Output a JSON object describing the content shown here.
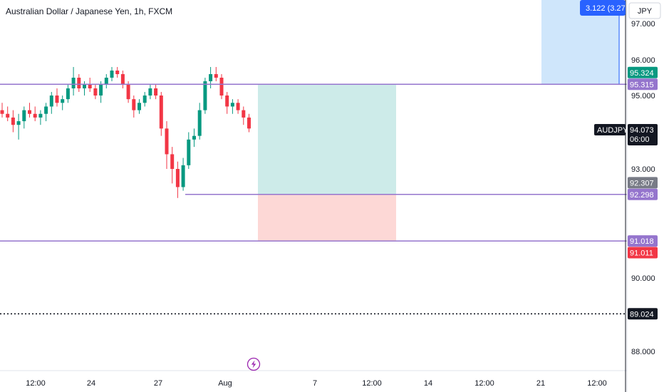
{
  "header": {
    "title": "Australian Dollar / Japanese Yen, 1h, FXCM"
  },
  "axis": {
    "currency": "JPY"
  },
  "colors": {
    "up": "#26a69a",
    "down": "#ef5350",
    "candle_up": "#089981",
    "candle_down": "#f23645",
    "level": "#9575cd",
    "profit_zone": "#cdebe9",
    "loss_zone": "#fdd8d6",
    "measure_zone": "#cfe6fb",
    "measure_badge": "#2962ff",
    "price_badge": "#131722"
  },
  "chart_data": {
    "type": "candlestick",
    "title": "Australian Dollar / Japanese Yen, 1h, FXCM",
    "symbol": "AUDJPY",
    "currency": "JPY",
    "ylim": [
      87.6,
      97.5
    ],
    "y_ticks": [
      "97.000",
      "96.000",
      "95.000",
      "93.000",
      "90.000",
      "88.000"
    ],
    "y_tick_values": [
      97,
      96,
      95,
      93,
      90,
      88
    ],
    "x_tick_labels": [
      "12:00",
      "24",
      "27",
      "Aug",
      "7",
      "12:00",
      "14",
      "12:00",
      "21",
      "12:00"
    ],
    "x_tick_index": [
      0,
      1,
      2,
      3,
      4,
      5,
      6,
      7,
      8,
      9
    ],
    "series": [
      {
        "values": [
          [
            0,
            94.6,
            94.8,
            94.4,
            94.5
          ],
          [
            1,
            94.5,
            94.7,
            94.3,
            94.4
          ],
          [
            2,
            94.4,
            94.6,
            94.0,
            94.2
          ],
          [
            3,
            94.2,
            94.5,
            93.8,
            94.3
          ],
          [
            4,
            94.3,
            94.7,
            94.1,
            94.6
          ],
          [
            5,
            94.6,
            94.8,
            94.4,
            94.5
          ],
          [
            6,
            94.5,
            94.7,
            94.3,
            94.4
          ],
          [
            7,
            94.4,
            94.6,
            94.2,
            94.5
          ],
          [
            8,
            94.5,
            94.8,
            94.3,
            94.7
          ],
          [
            9,
            94.7,
            95.1,
            94.5,
            95.0
          ],
          [
            10,
            95.0,
            95.2,
            94.7,
            94.8
          ],
          [
            11,
            94.8,
            95.0,
            94.6,
            94.9
          ],
          [
            12,
            94.9,
            95.3,
            94.8,
            95.2
          ],
          [
            13,
            95.2,
            95.8,
            95.0,
            95.5
          ],
          [
            14,
            95.5,
            95.6,
            95.1,
            95.2
          ],
          [
            15,
            95.2,
            95.4,
            95.0,
            95.3
          ],
          [
            16,
            95.3,
            95.5,
            95.1,
            95.2
          ],
          [
            17,
            95.2,
            95.3,
            94.9,
            95.0
          ],
          [
            18,
            95.0,
            95.4,
            94.8,
            95.3
          ],
          [
            19,
            95.3,
            95.6,
            95.2,
            95.5
          ],
          [
            20,
            95.5,
            95.8,
            95.4,
            95.7
          ],
          [
            21,
            95.7,
            95.8,
            95.5,
            95.6
          ],
          [
            22,
            95.6,
            95.7,
            95.2,
            95.3
          ],
          [
            23,
            95.3,
            95.4,
            94.8,
            94.9
          ],
          [
            24,
            94.9,
            95.0,
            94.4,
            94.6
          ],
          [
            25,
            94.6,
            94.9,
            94.5,
            94.8
          ],
          [
            26,
            94.8,
            95.1,
            94.7,
            95.0
          ],
          [
            27,
            95.0,
            95.3,
            94.9,
            95.2
          ],
          [
            28,
            95.2,
            95.3,
            94.9,
            95.0
          ],
          [
            29,
            95.0,
            95.1,
            93.9,
            94.1
          ],
          [
            30,
            94.1,
            94.3,
            93.0,
            93.4
          ],
          [
            31,
            93.4,
            93.6,
            92.6,
            93.0
          ],
          [
            32,
            93.0,
            93.2,
            92.2,
            92.5
          ],
          [
            33,
            92.5,
            93.3,
            92.4,
            93.1
          ],
          [
            34,
            93.1,
            94.0,
            93.0,
            93.8
          ],
          [
            35,
            93.8,
            94.1,
            93.6,
            93.9
          ],
          [
            36,
            93.9,
            94.8,
            93.8,
            94.6
          ],
          [
            37,
            94.6,
            95.5,
            94.5,
            95.4
          ],
          [
            38,
            95.4,
            95.8,
            95.2,
            95.6
          ],
          [
            39,
            95.6,
            95.8,
            95.4,
            95.5
          ],
          [
            40,
            95.5,
            95.6,
            94.9,
            95.0
          ],
          [
            41,
            95.0,
            95.1,
            94.5,
            94.7
          ],
          [
            42,
            94.7,
            94.9,
            94.5,
            94.8
          ],
          [
            43,
            94.8,
            94.9,
            94.5,
            94.6
          ],
          [
            44,
            94.6,
            94.7,
            94.2,
            94.4
          ],
          [
            45,
            94.4,
            94.5,
            94.0,
            94.1
          ]
        ]
      }
    ],
    "levels": [
      {
        "value": 95.315,
        "label": "95.315"
      },
      {
        "value": 92.298,
        "label": "92.298"
      },
      {
        "value": 91.018,
        "label": "91.018"
      }
    ],
    "dotted_level": {
      "value": 89.024,
      "label": "89.024"
    },
    "price_badges": [
      {
        "value": 95.324,
        "label": "95.324",
        "kind": "up"
      },
      {
        "value": 92.307,
        "label": "92.307",
        "kind": "neutral"
      },
      {
        "value": 91.011,
        "label": "91.011",
        "kind": "down"
      },
      {
        "value": 89.024,
        "label": "89.024",
        "kind": "dark"
      }
    ],
    "current": {
      "symbol": "AUDJPY",
      "price": "94.073",
      "countdown": "06:00"
    },
    "position": {
      "entry": 92.298,
      "take_profit": 95.315,
      "stop_loss": 91.011
    },
    "measure": {
      "label": "3.122 (3.27",
      "top": 97.5,
      "bottom": 95.315
    }
  }
}
